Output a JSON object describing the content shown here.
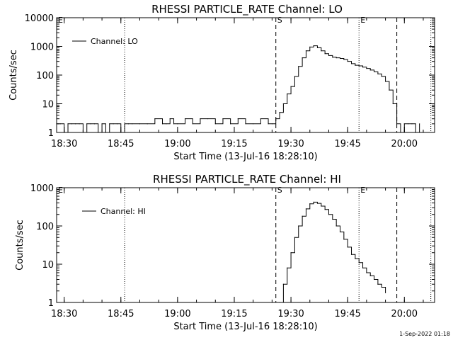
{
  "footer_timestamp": "1-Sep-2022 01:18",
  "chart_data": [
    {
      "type": "line",
      "title": "RHESSI PARTICLE_RATE Channel: LO",
      "xlabel": "Start Time (13-Jul-16 18:28:10)",
      "ylabel": "Counts/sec",
      "y_scale": "log",
      "xlim": [
        "18:28",
        "20:08"
      ],
      "ylim": [
        1,
        10000
      ],
      "x_tick_labels": [
        "18:30",
        "18:45",
        "19:00",
        "19:15",
        "19:30",
        "19:45",
        "20:00"
      ],
      "y_tick_labels": [
        "1",
        "10",
        "100",
        "1000",
        "10000"
      ],
      "legend": {
        "position": "top-left",
        "entries": [
          "Channel: LO"
        ]
      },
      "markers": {
        "dashed": [
          "19:26",
          "19:58"
        ],
        "dotted": [
          "18:46",
          "19:48",
          "20:07"
        ],
        "labels": [
          {
            "text": "E",
            "at": "18:28"
          },
          {
            "text": "S",
            "at": "19:26"
          },
          {
            "text": "E",
            "at": "19:48"
          }
        ]
      },
      "series": [
        {
          "name": "Channel: LO",
          "x": [
            "18:28",
            "18:29",
            "18:30",
            "18:31",
            "18:32",
            "18:33",
            "18:34",
            "18:35",
            "18:36",
            "18:37",
            "18:38",
            "18:39",
            "18:40",
            "18:41",
            "18:42",
            "18:43",
            "18:44",
            "18:45",
            "18:46",
            "18:47",
            "18:48",
            "18:50",
            "18:52",
            "18:54",
            "18:56",
            "18:57",
            "18:58",
            "18:59",
            "19:00",
            "19:02",
            "19:04",
            "19:06",
            "19:08",
            "19:10",
            "19:12",
            "19:14",
            "19:16",
            "19:18",
            "19:20",
            "19:22",
            "19:24",
            "19:25",
            "19:26",
            "19:27",
            "19:28",
            "19:29",
            "19:30",
            "19:31",
            "19:32",
            "19:33",
            "19:34",
            "19:35",
            "19:36",
            "19:37",
            "19:38",
            "19:39",
            "19:40",
            "19:41",
            "19:42",
            "19:43",
            "19:44",
            "19:45",
            "19:46",
            "19:47",
            "19:48",
            "19:49",
            "19:50",
            "19:51",
            "19:52",
            "19:53",
            "19:54",
            "19:55",
            "19:56",
            "19:57",
            "19:58",
            "19:59",
            "20:00",
            "20:01",
            "20:02",
            "20:03",
            "20:04"
          ],
          "values": [
            2,
            2,
            1,
            2,
            2,
            2,
            2,
            1,
            2,
            2,
            2,
            1,
            2,
            1,
            2,
            2,
            2,
            1,
            2,
            2,
            2,
            2,
            2,
            3,
            2,
            2,
            3,
            2,
            2,
            3,
            2,
            3,
            3,
            2,
            3,
            2,
            3,
            2,
            2,
            3,
            2,
            2,
            3,
            5,
            10,
            22,
            40,
            90,
            200,
            400,
            700,
            950,
            1050,
            900,
            700,
            560,
            480,
            420,
            400,
            380,
            350,
            300,
            250,
            220,
            210,
            190,
            170,
            150,
            130,
            110,
            90,
            60,
            30,
            10,
            2,
            1,
            2,
            2,
            2,
            1,
            2
          ]
        }
      ]
    },
    {
      "type": "line",
      "title": "RHESSI PARTICLE_RATE Channel: HI",
      "xlabel": "Start Time (13-Jul-16 18:28:10)",
      "ylabel": "Counts/sec",
      "y_scale": "log",
      "xlim": [
        "18:28",
        "20:08"
      ],
      "ylim": [
        1,
        1000
      ],
      "x_tick_labels": [
        "18:30",
        "18:45",
        "19:00",
        "19:15",
        "19:30",
        "19:45",
        "20:00"
      ],
      "y_tick_labels": [
        "1",
        "10",
        "100",
        "1000"
      ],
      "legend": {
        "position": "top-left",
        "entries": [
          "Channel: HI"
        ]
      },
      "markers": {
        "dashed": [
          "19:26",
          "19:58"
        ],
        "dotted": [
          "18:46",
          "19:48",
          "20:07"
        ],
        "labels": [
          {
            "text": "E",
            "at": "18:28"
          },
          {
            "text": "S",
            "at": "19:26"
          },
          {
            "text": "E",
            "at": "19:48"
          }
        ]
      },
      "series": [
        {
          "name": "Channel: HI",
          "x": [
            "19:27",
            "19:28",
            "19:29",
            "19:30",
            "19:31",
            "19:32",
            "19:33",
            "19:34",
            "19:35",
            "19:36",
            "19:37",
            "19:38",
            "19:39",
            "19:40",
            "19:41",
            "19:42",
            "19:43",
            "19:44",
            "19:45",
            "19:46",
            "19:47",
            "19:48",
            "19:49",
            "19:50",
            "19:51",
            "19:52",
            "19:53",
            "19:54",
            "19:55"
          ],
          "values": [
            1,
            3,
            8,
            20,
            50,
            100,
            180,
            280,
            380,
            420,
            390,
            330,
            270,
            200,
            150,
            100,
            70,
            45,
            28,
            18,
            14,
            11,
            8,
            6,
            5,
            4,
            3,
            2.5,
            1.8
          ]
        }
      ]
    }
  ]
}
